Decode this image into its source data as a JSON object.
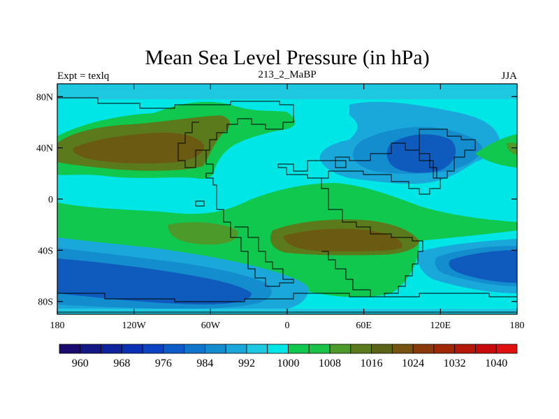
{
  "title": "Mean Sea Level Pressure (in hPa)",
  "subtitle_left": "Expt = texlq",
  "subtitle_center": "213_2_MaBP",
  "subtitle_right": "JJA",
  "chart_data": {
    "type": "heatmap",
    "x_range": [
      -180,
      180
    ],
    "y_range": [
      -90,
      90
    ],
    "x_ticks": [
      "180",
      "120W",
      "60W",
      "0",
      "60E",
      "120E",
      "180"
    ],
    "x_tick_values": [
      -180,
      -120,
      -60,
      0,
      60,
      120,
      180
    ],
    "y_ticks": [
      "80N",
      "40N",
      "0",
      "40S",
      "80S"
    ],
    "y_tick_values": [
      80,
      40,
      0,
      -40,
      -80
    ],
    "colorbar": {
      "labels": [
        "960",
        "968",
        "976",
        "984",
        "992",
        "1000",
        "1008",
        "1016",
        "1024",
        "1032",
        "1040"
      ],
      "levels": [
        960,
        964,
        968,
        972,
        976,
        980,
        984,
        988,
        992,
        996,
        1000,
        1004,
        1008,
        1012,
        1016,
        1020,
        1024,
        1028,
        1032,
        1036,
        1040
      ],
      "colors": [
        "#1a0a6e",
        "#141884",
        "#0f239c",
        "#0a31b4",
        "#0b43c4",
        "#0d5bc8",
        "#0f74cc",
        "#148dcf",
        "#1aa8da",
        "#1ec8e0",
        "#00e5e5",
        "#11c84f",
        "#1ac248",
        "#4b9a2a",
        "#5b7a1c",
        "#5b6416",
        "#76530f",
        "#8a3a08",
        "#a02808",
        "#b41808",
        "#c80a0a",
        "#e01010"
      ]
    },
    "regions_description_free": true
  }
}
